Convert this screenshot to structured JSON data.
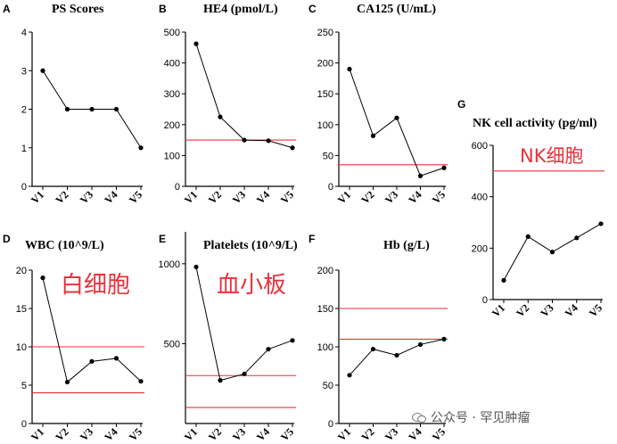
{
  "chart_data": [
    {
      "panel": "A",
      "type": "line",
      "title": "PS Scores",
      "categories": [
        "V1",
        "V2",
        "V3",
        "V4",
        "V5"
      ],
      "values": [
        3,
        2,
        2,
        2,
        1
      ],
      "ylim": [
        0,
        4
      ],
      "yticks": [
        0,
        1,
        2,
        3,
        4
      ],
      "ref_lines": [],
      "annotation": ""
    },
    {
      "panel": "B",
      "type": "line",
      "title": "HE4 (pmol/L)",
      "categories": [
        "V1",
        "V2",
        "V3",
        "V4",
        "V5"
      ],
      "values": [
        462,
        225,
        150,
        148,
        125
      ],
      "ylim": [
        0,
        500
      ],
      "yticks": [
        0,
        100,
        200,
        300,
        400,
        500
      ],
      "ref_lines": [
        150
      ],
      "annotation": ""
    },
    {
      "panel": "C",
      "type": "line",
      "title": "CA125 (U/mL)",
      "categories": [
        "V1",
        "V2",
        "V3",
        "V4",
        "V5"
      ],
      "values": [
        190,
        82,
        111,
        17,
        30
      ],
      "ylim": [
        0,
        250
      ],
      "yticks": [
        0,
        50,
        100,
        150,
        200,
        250
      ],
      "ref_lines": [
        35
      ],
      "annotation": ""
    },
    {
      "panel": "D",
      "type": "line",
      "title": "WBC (10^9/L)",
      "categories": [
        "V1",
        "V2",
        "V3",
        "V4",
        "V5"
      ],
      "values": [
        19,
        5.4,
        8.1,
        8.5,
        5.5
      ],
      "ylim": [
        0,
        20
      ],
      "yticks": [
        0,
        5,
        10,
        15,
        20
      ],
      "ref_lines": [
        10,
        4
      ],
      "annotation": "白细胞"
    },
    {
      "panel": "E",
      "type": "line",
      "title": "Platelets (10^9/L)",
      "categories": [
        "V1",
        "V2",
        "V3",
        "V4",
        "V5"
      ],
      "values": [
        980,
        270,
        310,
        465,
        520
      ],
      "ylim": [
        0,
        1200
      ],
      "yticks": [
        500,
        1000
      ],
      "ref_lines": [
        300,
        100
      ],
      "annotation": "血小板"
    },
    {
      "panel": "F",
      "type": "line",
      "title": "Hb (g/L)",
      "categories": [
        "V1",
        "V2",
        "V3",
        "V4",
        "V5"
      ],
      "values": [
        63,
        97,
        89,
        103,
        110
      ],
      "ylim": [
        0,
        200
      ],
      "yticks": [
        0,
        50,
        100,
        150,
        200
      ],
      "ref_lines": [
        150,
        110
      ],
      "annotation": ""
    },
    {
      "panel": "G",
      "type": "line",
      "title": "NK cell activity (pg/ml)",
      "categories": [
        "V1",
        "V2",
        "V3",
        "V4",
        "V5"
      ],
      "values": [
        75,
        245,
        185,
        240,
        295
      ],
      "ylim": [
        0,
        600
      ],
      "yticks": [
        0,
        200,
        400,
        600
      ],
      "ref_lines": [
        500
      ],
      "annotation": "NK细胞"
    }
  ],
  "colors": {
    "reference_line": "#e8323c",
    "series": "#000000"
  },
  "watermark": "公众号 · 罕见肿瘤"
}
